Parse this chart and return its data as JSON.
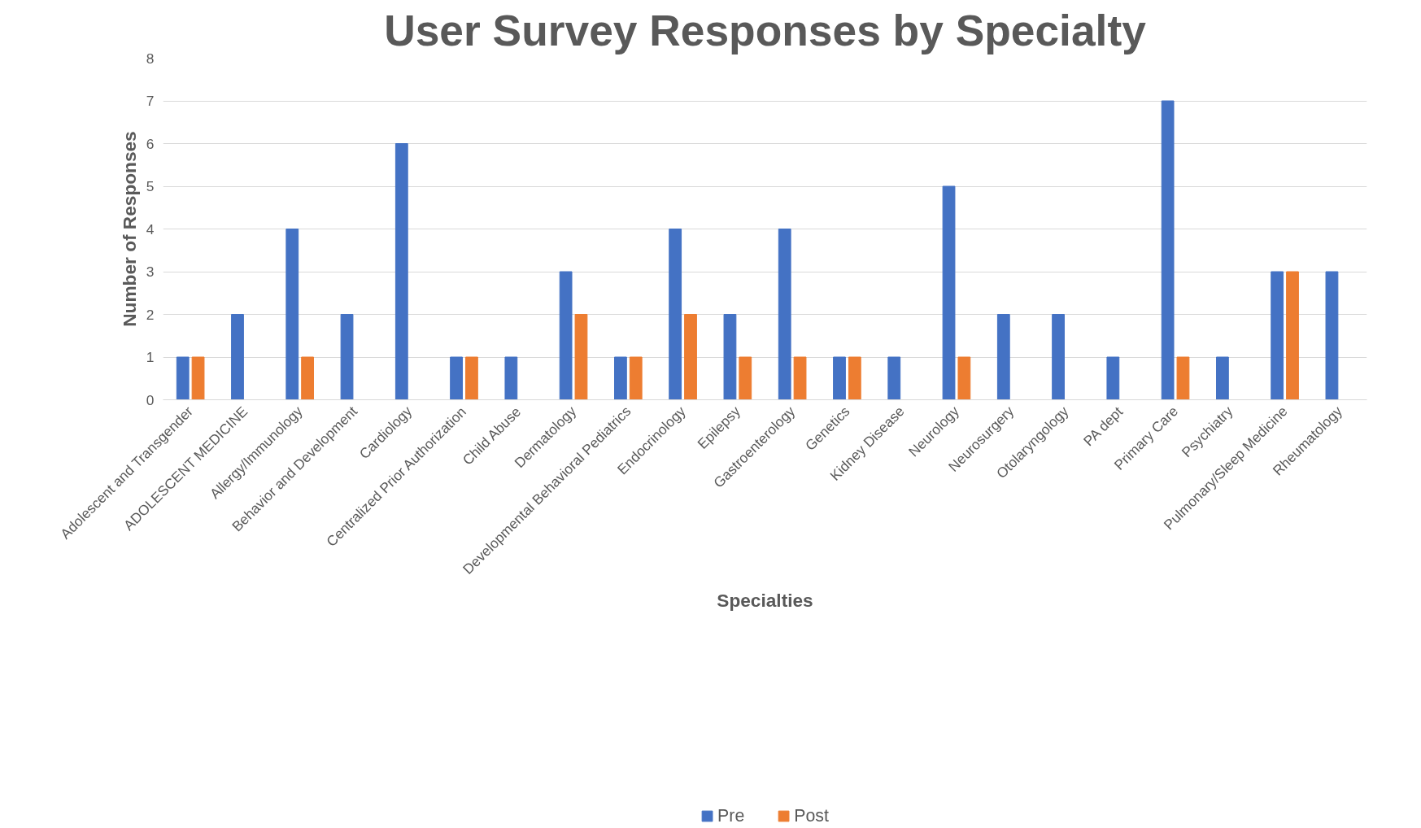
{
  "chart_data": {
    "type": "bar",
    "title": "User Survey Responses by Specialty",
    "xlabel": "Specialties",
    "ylabel": "Number of Responses",
    "categories": [
      "Adolescent and Transgender",
      "ADOLESCENT MEDICINE",
      "Allergy/Immunology",
      "Behavior and Development",
      "Cardiology",
      "Centralized Prior Authorization",
      "Child Abuse",
      "Dermatology",
      "Developmental Behavioral Pediatrics",
      "Endocrinology",
      "Epilepsy",
      "Gastroenterology",
      "Genetics",
      "Kidney Disease",
      "Neurology",
      "Neurosurgery",
      "Otolaryngology",
      "PA dept",
      "Primary Care",
      "Psychiatry",
      "Pulmonary/Sleep Medicine",
      "Rheumatology"
    ],
    "series": [
      {
        "name": "Pre",
        "color": "#4472c4",
        "values": [
          1,
          2,
          4,
          2,
          6,
          1,
          1,
          3,
          1,
          4,
          2,
          4,
          1,
          1,
          5,
          2,
          2,
          1,
          7,
          1,
          3,
          3
        ]
      },
      {
        "name": "Post",
        "color": "#ed7d31",
        "values": [
          1,
          null,
          1,
          null,
          null,
          1,
          null,
          2,
          1,
          2,
          1,
          1,
          1,
          null,
          1,
          null,
          null,
          null,
          1,
          null,
          3,
          null
        ]
      }
    ],
    "ylim": [
      0,
      8
    ],
    "yticks": [
      0,
      1,
      2,
      3,
      4,
      5,
      6,
      7,
      8
    ],
    "grid": "y",
    "legend": "bottom"
  }
}
